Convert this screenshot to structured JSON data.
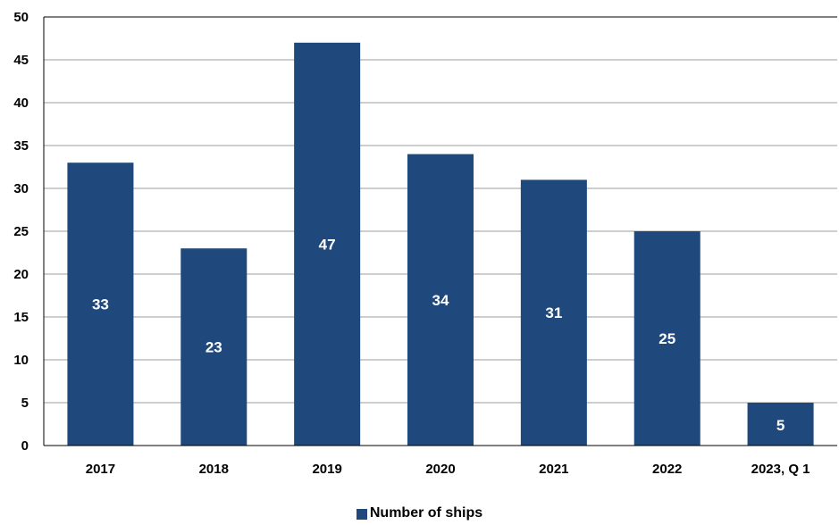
{
  "chart_data": {
    "type": "bar",
    "categories": [
      "2017",
      "2018",
      "2019",
      "2020",
      "2021",
      "2022",
      "2023, Q 1"
    ],
    "series": [
      {
        "name": "Number of ships",
        "values": [
          33,
          23,
          47,
          34,
          31,
          25,
          5
        ]
      }
    ],
    "data_labels": [
      "33",
      "23",
      "47",
      "34",
      "31",
      "25",
      "5"
    ],
    "title": "",
    "xlabel": "",
    "ylabel": "",
    "ylim": [
      0,
      50
    ],
    "y_ticks": [
      0,
      5,
      10,
      15,
      20,
      25,
      30,
      35,
      40,
      45,
      50
    ],
    "grid": true,
    "legend_position": "bottom-center",
    "colors": {
      "bar": "#1F497D",
      "grid": "#9c9c9c",
      "axis": "#000000",
      "data_label": "#ffffff"
    }
  },
  "legend": {
    "label": "Number of ships"
  }
}
